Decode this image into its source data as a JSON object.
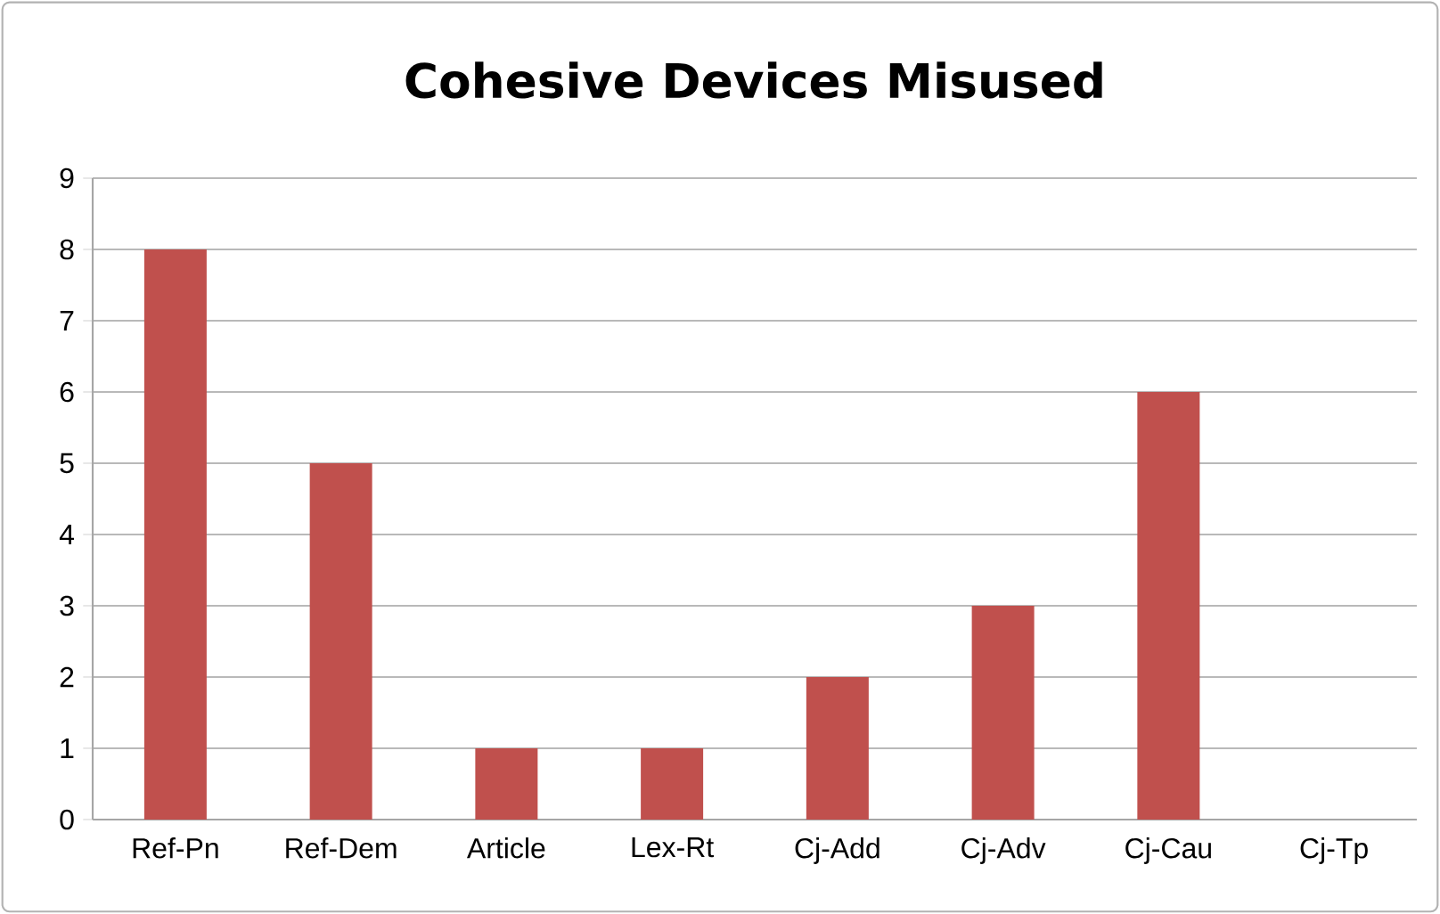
{
  "chart_data": {
    "type": "bar",
    "title": "Cohesive Devices Misused",
    "categories": [
      "Ref-Pn",
      "Ref-Dem",
      "Article",
      "Lex-Rt",
      "Cj-Add",
      "Cj-Adv",
      "Cj-Cau",
      "Cj-Tp"
    ],
    "values": [
      8,
      5,
      1,
      1,
      2,
      3,
      6,
      0
    ],
    "color": "#c0504d",
    "ylim": [
      0,
      9
    ],
    "yticks": [
      0,
      1,
      2,
      3,
      4,
      5,
      6,
      7,
      8,
      9
    ],
    "grid": "y"
  }
}
